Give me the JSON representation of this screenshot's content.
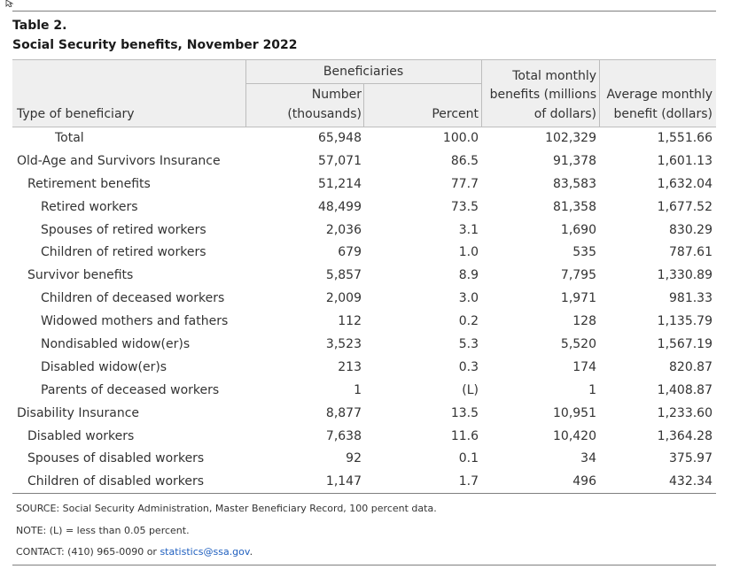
{
  "table": {
    "title": "Table 2.",
    "subtitle": "Social Security benefits, November 2022",
    "headers": {
      "type": "Type of beneficiary",
      "beneficiaries": "Beneficiaries",
      "number_l1": "Number",
      "number_l2": "(thousands)",
      "percent": "Percent",
      "total_l1": "Total monthly",
      "total_l2": "benefits (millions",
      "total_l3": "of dollars)",
      "avg_l1": "Average monthly",
      "avg_l2": "benefit (dollars)"
    },
    "rows": [
      {
        "label": "Total",
        "number": "65,948",
        "percent": "100.0",
        "monthly": "102,329",
        "average": "1,551.66"
      },
      {
        "label": "Old-Age and Survivors Insurance",
        "number": "57,071",
        "percent": "86.5",
        "monthly": "91,378",
        "average": "1,601.13"
      },
      {
        "label": "Retirement benefits",
        "number": "51,214",
        "percent": "77.7",
        "monthly": "83,583",
        "average": "1,632.04"
      },
      {
        "label": "Retired workers",
        "number": "48,499",
        "percent": "73.5",
        "monthly": "81,358",
        "average": "1,677.52"
      },
      {
        "label": "Spouses of retired workers",
        "number": "2,036",
        "percent": "3.1",
        "monthly": "1,690",
        "average": "830.29"
      },
      {
        "label": "Children of retired workers",
        "number": "679",
        "percent": "1.0",
        "monthly": "535",
        "average": "787.61"
      },
      {
        "label": "Survivor benefits",
        "number": "5,857",
        "percent": "8.9",
        "monthly": "7,795",
        "average": "1,330.89"
      },
      {
        "label": "Children of deceased workers",
        "number": "2,009",
        "percent": "3.0",
        "monthly": "1,971",
        "average": "981.33"
      },
      {
        "label": "Widowed mothers and fathers",
        "number": "112",
        "percent": "0.2",
        "monthly": "128",
        "average": "1,135.79"
      },
      {
        "label": "Nondisabled widow(er)s",
        "number": "3,523",
        "percent": "5.3",
        "monthly": "5,520",
        "average": "1,567.19"
      },
      {
        "label": "Disabled widow(er)s",
        "number": "213",
        "percent": "0.3",
        "monthly": "174",
        "average": "820.87"
      },
      {
        "label": "Parents of deceased workers",
        "number": "1",
        "percent": "(L)",
        "monthly": "1",
        "average": "1,408.87"
      },
      {
        "label": "Disability Insurance",
        "number": "8,877",
        "percent": "13.5",
        "monthly": "10,951",
        "average": "1,233.60"
      },
      {
        "label": "Disabled workers",
        "number": "7,638",
        "percent": "11.6",
        "monthly": "10,420",
        "average": "1,364.28"
      },
      {
        "label": "Spouses of disabled workers",
        "number": "92",
        "percent": "0.1",
        "monthly": "34",
        "average": "375.97"
      },
      {
        "label": "Children of disabled workers",
        "number": "1,147",
        "percent": "1.7",
        "monthly": "496",
        "average": "432.34"
      }
    ]
  },
  "notes": {
    "source": "SOURCE: Social Security Administration, Master Beneficiary Record, 100 percent data.",
    "note": "NOTE: (L) = less than 0.05 percent.",
    "contact_prefix": "CONTACT: (410) 965-0090 or ",
    "contact_email": "statistics@ssa.gov",
    "contact_suffix": "."
  },
  "colors": {
    "header_bg": "#efefef",
    "link": "#1f5fbf"
  }
}
